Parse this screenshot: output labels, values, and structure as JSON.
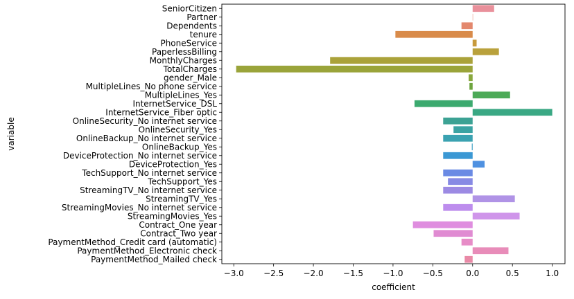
{
  "chart_data": {
    "type": "bar",
    "orientation": "horizontal",
    "xlabel": "coefficient",
    "ylabel": "variable",
    "xlim": [
      -3.15,
      1.16
    ],
    "xticks": [
      -3.0,
      -2.5,
      -2.0,
      -1.5,
      -1.0,
      -0.5,
      0.0,
      0.5,
      1.0
    ],
    "xtick_labels": [
      "−3.0",
      "−2.5",
      "−2.0",
      "−1.5",
      "−1.0",
      "−0.5",
      "0.0",
      "0.5",
      "1.0"
    ],
    "grid": false,
    "categories": [
      "SeniorCitizen",
      "Partner",
      "Dependents",
      "tenure",
      "PhoneService",
      "PaperlessBilling",
      "MonthlyCharges",
      "TotalCharges",
      "gender_Male",
      "MultipleLines_No phone service",
      "MultipleLines_Yes",
      "InternetService_DSL",
      "InternetService_Fiber optic",
      "OnlineSecurity_No internet service",
      "OnlineSecurity_Yes",
      "OnlineBackup_No internet service",
      "OnlineBackup_Yes",
      "DeviceProtection_No internet service",
      "DeviceProtection_Yes",
      "TechSupport_No internet service",
      "TechSupport_Yes",
      "StreamingTV_No internet service",
      "StreamingTV_Yes",
      "StreamingMovies_No internet service",
      "StreamingMovies_Yes",
      "Contract_One year",
      "Contract_Two year",
      "PaymentMethod_Credit card (automatic)",
      "PaymentMethod_Electronic check",
      "PaymentMethod_Mailed check"
    ],
    "values": [
      0.27,
      0.0,
      -0.14,
      -0.97,
      0.05,
      0.33,
      -1.79,
      -2.97,
      -0.05,
      -0.04,
      0.47,
      -0.73,
      1.0,
      -0.37,
      -0.24,
      -0.37,
      -0.01,
      -0.37,
      0.15,
      -0.37,
      -0.31,
      -0.37,
      0.53,
      -0.37,
      0.59,
      -0.75,
      -0.49,
      -0.14,
      0.45,
      -0.1
    ],
    "colors": [
      "#e9909b",
      "#e79a8b",
      "#e3886d",
      "#d98b4a",
      "#c79a3c",
      "#b9a13c",
      "#aaa23a",
      "#9aa43a",
      "#89a83e",
      "#6da43e",
      "#4daa58",
      "#3caa6f",
      "#3aa884",
      "#3ca294",
      "#3ba3a3",
      "#3aa2b1",
      "#3b9fc2",
      "#3b98d4",
      "#4f91e1",
      "#6a8ae4",
      "#878ae4",
      "#9c8ae3",
      "#b093e6",
      "#bd8ded",
      "#cf95ea",
      "#df8ddf",
      "#e08bd2",
      "#e78cc7",
      "#e88cb9",
      "#e98aa7"
    ]
  }
}
